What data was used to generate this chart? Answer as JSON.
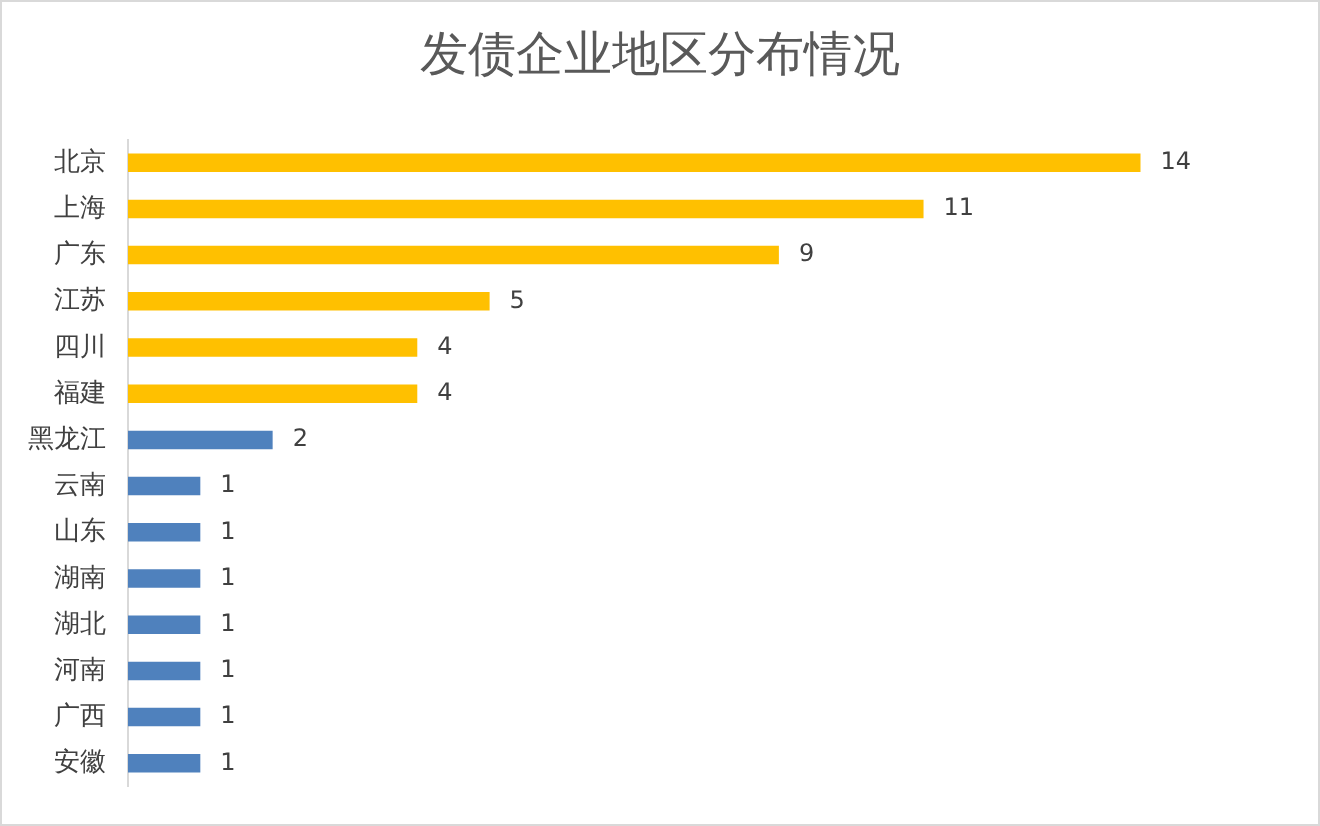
{
  "chart_data": {
    "type": "bar",
    "orientation": "horizontal",
    "title": "发债企业地区分布情况",
    "categories": [
      "北京",
      "上海",
      "广东",
      "江苏",
      "四川",
      "福建",
      "黑龙江",
      "云南",
      "山东",
      "湖南",
      "湖北",
      "河南",
      "广西",
      "安徽"
    ],
    "values": [
      14,
      11,
      9,
      5,
      4,
      4,
      2,
      1,
      1,
      1,
      1,
      1,
      1,
      1
    ],
    "colors": [
      "#ffc000",
      "#ffc000",
      "#ffc000",
      "#ffc000",
      "#ffc000",
      "#ffc000",
      "#4f81bd",
      "#4f81bd",
      "#4f81bd",
      "#4f81bd",
      "#4f81bd",
      "#4f81bd",
      "#4f81bd",
      "#4f81bd"
    ],
    "data_labels": true,
    "legend": false
  }
}
